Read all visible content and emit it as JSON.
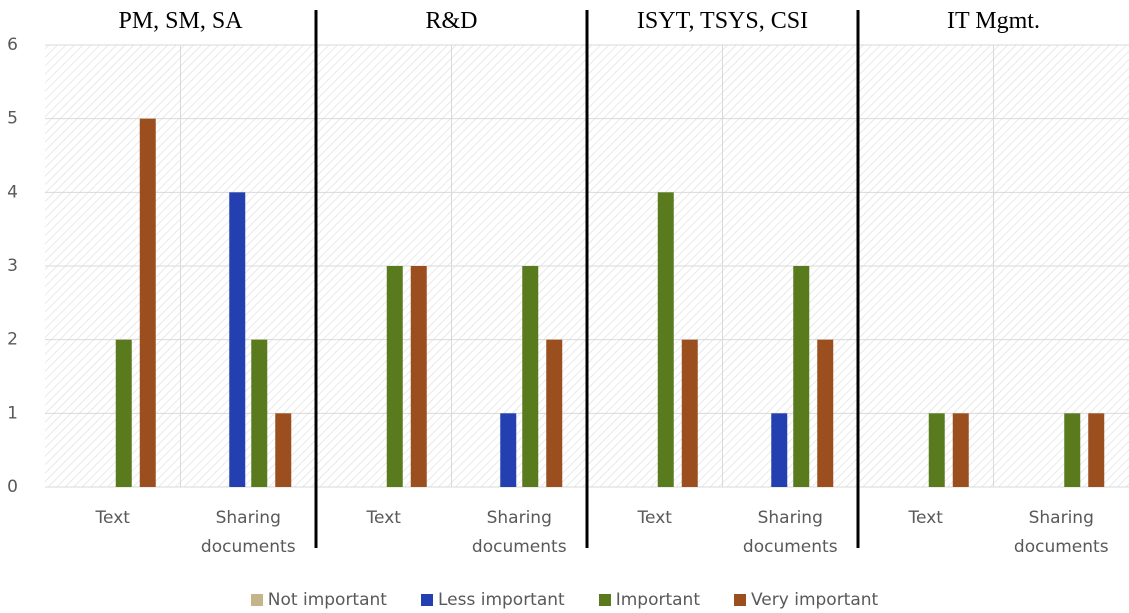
{
  "chart_data": {
    "type": "bar",
    "groups": [
      "PM, SM, SA",
      "R&D",
      "ISYT, TSYS, CSI",
      "IT Mgmt."
    ],
    "categories": [
      "Text",
      "Sharing documents",
      "Text",
      "Sharing documents",
      "Text",
      "Sharing documents",
      "Text",
      "Sharing documents"
    ],
    "series": [
      {
        "name": "Not important",
        "color": "#c4b48a",
        "values": [
          0,
          0,
          0,
          0,
          0,
          0,
          0,
          0
        ]
      },
      {
        "name": "Less important",
        "color": "#2440b0",
        "values": [
          0,
          4,
          0,
          1,
          0,
          1,
          0,
          0
        ]
      },
      {
        "name": "Important",
        "color": "#5a7a1e",
        "values": [
          2,
          2,
          3,
          3,
          4,
          3,
          1,
          1
        ]
      },
      {
        "name": "Very important",
        "color": "#9c4f1e",
        "values": [
          5,
          1,
          3,
          2,
          2,
          2,
          1,
          1
        ]
      }
    ],
    "ylim": [
      0,
      6
    ],
    "yticks": [
      0,
      1,
      2,
      3,
      4,
      5,
      6
    ],
    "grid": true,
    "legend": "bottom"
  }
}
